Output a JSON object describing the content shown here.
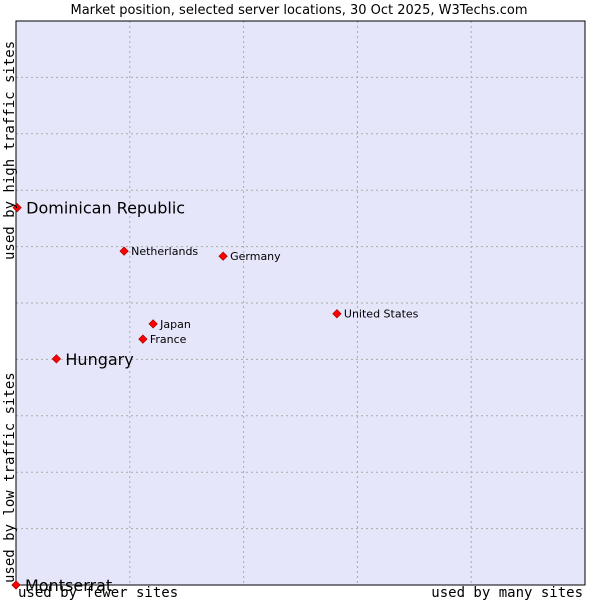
{
  "chart_data": {
    "type": "scatter",
    "title": "Market position, selected server locations, 30 Oct 2025, W3Techs.com",
    "xlabel_left": "used by fewer sites",
    "xlabel_right": "used by many sites",
    "ylabel_bottom": "used by low traffic sites",
    "ylabel_top": "used by high traffic sites",
    "xlim": [
      0,
      100
    ],
    "ylim": [
      0,
      100
    ],
    "grid": true,
    "colors": {
      "plot_bg": "#e6e6fa",
      "grid": "#aaaaaa",
      "point": "#ff0000",
      "point_edge": "#990000"
    },
    "points": [
      {
        "name": "Dominican Republic",
        "x": 0.2,
        "y": 66.9,
        "highlight": true
      },
      {
        "name": "Hungary",
        "x": 7.1,
        "y": 40.1,
        "highlight": true
      },
      {
        "name": "Montserrat",
        "x": 0.0,
        "y": 0.0,
        "highlight": true
      },
      {
        "name": "Netherlands",
        "x": 19.0,
        "y": 59.2,
        "highlight": false
      },
      {
        "name": "Germany",
        "x": 36.4,
        "y": 58.3,
        "highlight": false
      },
      {
        "name": "Japan",
        "x": 24.1,
        "y": 46.3,
        "highlight": false
      },
      {
        "name": "France",
        "x": 22.3,
        "y": 43.6,
        "highlight": false
      },
      {
        "name": "United States",
        "x": 56.4,
        "y": 48.1,
        "highlight": false
      }
    ]
  }
}
